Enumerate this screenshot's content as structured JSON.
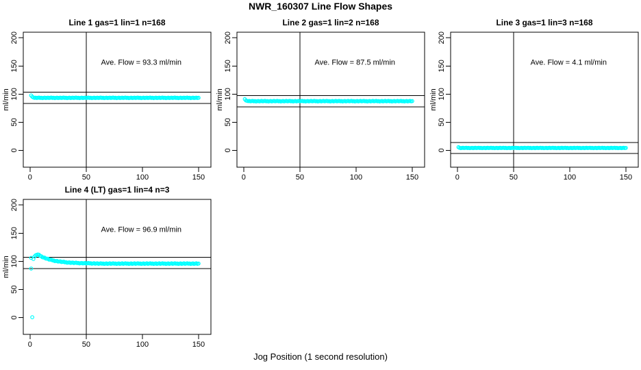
{
  "page_title": "NWR_160307  Line Flow Shapes",
  "xlabel_outer": "Jog Position (1 second resolution)",
  "colors": {
    "points": "#00FFFF",
    "axis": "#000000",
    "background": "#FFFFFF"
  },
  "chart_data": [
    {
      "type": "scatter",
      "title": "Line 1 gas=1 lin=1 n=168",
      "n": 168,
      "ave_flow": 93.3,
      "ave_flow_label": "Ave. Flow =  93.3  ml/min",
      "ylabel": "ml/min",
      "xticks": [
        0,
        50,
        100,
        150
      ],
      "yticks": [
        0,
        50,
        100,
        150,
        200
      ],
      "xlim": [
        -6,
        161
      ],
      "ylim": [
        -30,
        210
      ],
      "vline_x": 50,
      "hlines": [
        103.3,
        83.3
      ],
      "annotation_xy": [
        99,
        152
      ],
      "marker": "open-circle",
      "x_start": 1,
      "y": [
        97.6,
        95.2,
        94.0,
        93.3,
        93.7,
        93.0,
        93.4,
        93.8,
        93.1,
        93.5,
        92.8,
        93.2,
        93.6,
        92.9,
        93.3,
        93.7,
        93.0,
        93.4,
        93.8,
        93.1,
        93.5,
        92.8,
        93.2,
        93.6,
        92.9,
        93.3,
        93.7,
        93.0,
        93.4,
        93.8,
        93.1,
        93.5,
        92.8,
        93.2,
        93.6,
        92.9,
        93.3,
        93.7,
        93.0,
        93.4,
        93.8,
        93.1,
        93.5,
        92.8,
        93.2,
        93.6,
        92.9,
        93.3,
        93.7,
        93.0,
        93.4,
        93.8,
        93.1,
        93.5,
        92.8,
        93.2,
        93.6,
        92.9,
        93.3,
        93.7,
        93.0,
        93.4,
        93.8,
        93.1,
        93.5,
        92.8,
        93.2,
        93.6,
        92.9,
        93.3,
        93.7,
        93.0,
        93.4,
        93.8,
        93.1,
        93.5,
        92.8,
        93.2,
        93.6,
        92.9,
        93.3,
        93.7,
        93.0,
        93.4,
        93.8,
        93.1,
        93.5,
        92.8,
        93.2,
        93.6,
        92.9,
        93.3,
        93.7,
        93.0,
        93.4,
        93.8,
        93.1,
        93.5,
        92.8,
        93.2,
        93.6,
        92.9,
        93.3,
        93.7,
        93.0,
        93.4,
        93.8,
        93.1,
        93.5,
        92.8,
        93.2,
        93.6,
        92.9,
        93.3,
        93.7,
        93.0,
        93.4,
        93.8,
        93.1,
        93.5,
        92.8,
        93.2,
        93.6,
        92.9,
        93.3,
        93.7,
        93.0,
        93.4,
        93.8,
        93.1,
        93.5,
        92.8,
        93.2,
        93.6,
        92.9,
        93.3,
        93.7,
        93.0,
        93.4,
        93.8,
        93.1,
        93.5,
        92.8,
        93.2,
        93.6,
        92.9,
        93.3,
        93.7,
        93.0,
        93.4
      ],
      "extra_points": []
    },
    {
      "type": "scatter",
      "title": "Line 2 gas=1 lin=2 n=168",
      "n": 168,
      "ave_flow": 87.5,
      "ave_flow_label": "Ave. Flow =  87.5  ml/min",
      "ylabel": "ml/min",
      "xticks": [
        0,
        50,
        100,
        150
      ],
      "yticks": [
        0,
        50,
        100,
        150,
        200
      ],
      "xlim": [
        -6,
        161
      ],
      "ylim": [
        -30,
        210
      ],
      "vline_x": 50,
      "hlines": [
        97.5,
        77.5
      ],
      "annotation_xy": [
        99,
        152
      ],
      "marker": "open-circle",
      "x_start": 1,
      "y": [
        91.0,
        88.6,
        87.9,
        87.4,
        87.8,
        87.1,
        87.5,
        87.9,
        87.2,
        87.6,
        86.9,
        87.3,
        87.7,
        87.0,
        87.4,
        87.8,
        87.1,
        87.5,
        87.9,
        87.2,
        87.6,
        86.9,
        87.3,
        87.7,
        87.0,
        87.4,
        87.8,
        87.1,
        87.5,
        87.9,
        87.2,
        87.6,
        86.9,
        87.3,
        87.7,
        87.0,
        87.4,
        87.8,
        87.1,
        87.5,
        87.9,
        87.2,
        87.6,
        86.9,
        87.3,
        87.7,
        87.0,
        87.4,
        87.8,
        87.1,
        87.5,
        87.9,
        87.2,
        87.6,
        86.9,
        87.3,
        87.7,
        87.0,
        87.4,
        87.8,
        87.1,
        87.5,
        87.9,
        87.2,
        87.6,
        86.9,
        87.3,
        87.7,
        87.0,
        87.4,
        87.8,
        87.1,
        87.5,
        87.9,
        87.2,
        87.6,
        86.9,
        87.3,
        87.7,
        87.0,
        87.4,
        87.8,
        87.1,
        87.5,
        87.9,
        87.2,
        87.6,
        86.9,
        87.3,
        87.7,
        87.0,
        87.4,
        87.8,
        87.1,
        87.5,
        87.9,
        87.2,
        87.6,
        86.9,
        87.3,
        87.7,
        87.0,
        87.4,
        87.8,
        87.1,
        87.5,
        87.9,
        87.2,
        87.6,
        86.9,
        87.3,
        87.7,
        87.0,
        87.4,
        87.8,
        87.1,
        87.5,
        87.9,
        87.2,
        87.6,
        86.9,
        87.3,
        87.7,
        87.0,
        87.4,
        87.8,
        87.1,
        87.5,
        87.9,
        87.2,
        87.6,
        86.9,
        87.3,
        87.7,
        87.0,
        87.4,
        87.8,
        87.1,
        87.5,
        87.9,
        87.2,
        87.6,
        86.9,
        87.3,
        87.7,
        87.0,
        87.4,
        87.8,
        87.1,
        87.5
      ],
      "extra_points": []
    },
    {
      "type": "scatter",
      "title": "Line 3 gas=1 lin=3 n=168",
      "n": 168,
      "ave_flow": 4.1,
      "ave_flow_label": "Ave. Flow =  4.1  ml/min",
      "ylabel": "ml/min",
      "xticks": [
        0,
        50,
        100,
        150
      ],
      "yticks": [
        0,
        50,
        100,
        150,
        200
      ],
      "xlim": [
        -6,
        161
      ],
      "ylim": [
        -30,
        210
      ],
      "vline_x": 50,
      "hlines": [
        14.1,
        -5.9
      ],
      "annotation_xy": [
        99,
        152
      ],
      "marker": "open-circle",
      "x_start": 1,
      "y": [
        5.6,
        4.4,
        3.9,
        4.2,
        4.5,
        4.0,
        4.3,
        4.6,
        4.0,
        4.4,
        3.8,
        4.1,
        4.4,
        3.9,
        4.2,
        4.5,
        4.0,
        4.3,
        4.6,
        4.0,
        4.4,
        3.8,
        4.1,
        4.4,
        3.9,
        4.2,
        4.5,
        4.0,
        4.3,
        4.6,
        4.0,
        4.4,
        3.8,
        4.1,
        4.4,
        3.9,
        4.2,
        4.5,
        4.0,
        4.3,
        4.6,
        4.0,
        4.4,
        3.8,
        4.1,
        4.4,
        3.9,
        4.2,
        4.5,
        4.0,
        4.3,
        4.6,
        4.0,
        4.4,
        3.8,
        4.1,
        4.4,
        3.9,
        4.2,
        4.5,
        4.0,
        4.3,
        4.6,
        4.0,
        4.4,
        3.8,
        4.1,
        4.4,
        3.9,
        4.2,
        4.5,
        4.0,
        4.3,
        4.6,
        4.0,
        4.4,
        3.8,
        4.1,
        4.4,
        3.9,
        4.2,
        4.5,
        4.0,
        4.3,
        4.6,
        4.0,
        4.4,
        3.8,
        4.1,
        4.4,
        3.9,
        4.2,
        4.5,
        4.0,
        4.3,
        4.6,
        4.0,
        4.4,
        3.8,
        4.1,
        4.4,
        3.9,
        4.2,
        4.5,
        4.0,
        4.3,
        4.6,
        4.0,
        4.4,
        3.8,
        4.1,
        4.4,
        3.9,
        4.2,
        4.5,
        4.0,
        4.3,
        4.6,
        4.0,
        4.4,
        3.8,
        4.1,
        4.4,
        3.9,
        4.2,
        4.5,
        4.0,
        4.3,
        4.6,
        4.0,
        4.4,
        3.8,
        4.1,
        4.4,
        3.9,
        4.2,
        4.5,
        4.0,
        4.3,
        4.6,
        4.0,
        4.4,
        3.8,
        4.1,
        4.4,
        3.9,
        4.2,
        4.5,
        4.0,
        4.3
      ],
      "extra_points": []
    },
    {
      "type": "scatter",
      "title": "Line 4 (LT) gas=1 lin=4 n=3",
      "n": 3,
      "ave_flow": 96.9,
      "ave_flow_label": "Ave. Flow =  96.9  ml/min",
      "ylabel": "ml/min",
      "xticks": [
        0,
        50,
        100,
        150
      ],
      "yticks": [
        0,
        50,
        100,
        150,
        200
      ],
      "xlim": [
        -6,
        161
      ],
      "ylim": [
        -30,
        210
      ],
      "vline_x": 50,
      "hlines": [
        106.9,
        86.9
      ],
      "annotation_xy": [
        99,
        152
      ],
      "marker": "open-circle",
      "x_start": 3,
      "y": [
        104.0,
        108.5,
        110.5,
        111.5,
        112.0,
        111.6,
        109.5,
        108.9,
        107.1,
        106.7,
        106.4,
        104.8,
        104.6,
        104.4,
        102.9,
        102.8,
        102.8,
        101.6,
        101.5,
        100.3,
        100.4,
        100.6,
        99.4,
        99.6,
        99.8,
        98.6,
        98.9,
        99.2,
        98.1,
        98.4,
        97.4,
        97.7,
        98.0,
        97.1,
        97.4,
        97.8,
        96.8,
        97.2,
        97.6,
        96.7,
        97.0,
        96.1,
        96.6,
        97.0,
        96.1,
        96.5,
        96.9,
        96.0,
        96.5,
        96.9,
        96.1,
        96.5,
        95.6,
        96.1,
        96.5,
        95.6,
        96.1,
        96.3,
        95.4,
        95.9,
        96.4,
        95.6,
        96.0,
        95.2,
        95.7,
        96.2,
        95.3,
        95.8,
        96.3,
        95.4,
        95.9,
        96.4,
        95.6,
        96.0,
        95.2,
        95.7,
        96.2,
        95.3,
        95.8,
        96.3,
        95.4,
        95.9,
        96.4,
        95.6,
        96.0,
        95.2,
        95.7,
        96.2,
        95.3,
        95.8,
        96.3,
        95.4,
        95.9,
        96.4,
        95.6,
        96.0,
        95.2,
        95.7,
        96.2,
        95.3,
        95.8,
        96.3,
        95.4,
        95.9,
        96.4,
        95.6,
        96.0,
        95.2,
        95.7,
        96.2,
        95.3,
        95.8,
        96.3,
        95.4,
        95.9,
        96.4,
        95.6,
        96.0,
        95.2,
        95.7,
        96.2,
        95.3,
        95.8,
        96.3,
        95.4,
        95.9,
        96.4,
        95.6,
        96.0,
        95.2,
        95.7,
        96.2,
        95.3,
        95.8,
        96.3,
        95.4,
        95.9,
        96.4,
        95.6,
        96.0,
        95.2,
        95.7,
        96.2,
        95.3,
        95.8,
        96.3,
        95.4,
        95.9
      ],
      "extra_points": [
        [
          1,
          106.0
        ],
        [
          1,
          87.0
        ],
        [
          2,
          0.5
        ]
      ]
    }
  ]
}
